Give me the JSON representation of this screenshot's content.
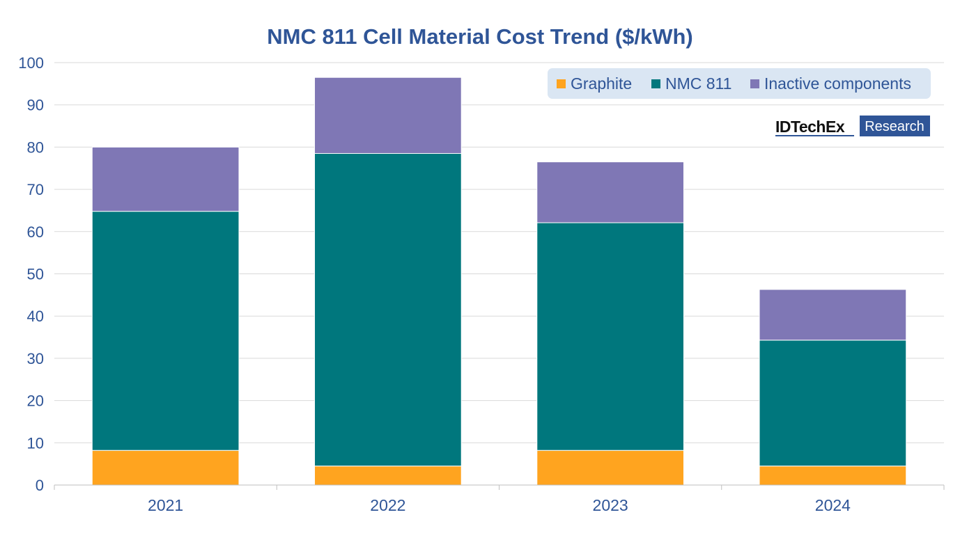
{
  "chart_data": {
    "type": "bar",
    "stacked": true,
    "title": "NMC 811 Cell Material Cost Trend ($/kWh)",
    "xlabel": "",
    "ylabel": "",
    "ylim": [
      0,
      100
    ],
    "yticks": [
      0,
      10,
      20,
      30,
      40,
      50,
      60,
      70,
      80,
      90,
      100
    ],
    "categories": [
      "2021",
      "2022",
      "2023",
      "2024"
    ],
    "series": [
      {
        "name": "Graphite",
        "color": "#FFA41F",
        "values": [
          8.2,
          4.5,
          8.2,
          4.5
        ]
      },
      {
        "name": "NMC 811",
        "color": "#00777D",
        "values": [
          56.6,
          74.0,
          53.9,
          29.8
        ]
      },
      {
        "name": "Inactive components",
        "color": "#7F77B5",
        "values": [
          15.2,
          18.0,
          14.4,
          12.0
        ]
      }
    ],
    "legend_position": "top-right",
    "grid": true
  },
  "brand": {
    "name": "IDTechEx",
    "tag": "Research",
    "color": "#2F5597"
  },
  "colors": {
    "text": "#2F5597",
    "grid": "#D9D9D9",
    "legend_bg": "#DAE6F3"
  }
}
